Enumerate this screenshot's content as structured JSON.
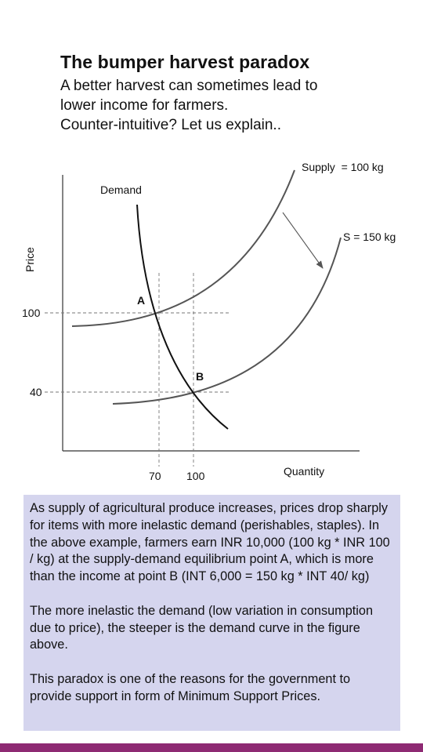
{
  "header": {
    "title": "The bumper harvest paradox",
    "subtitle_lines": [
      "A better harvest can sometimes lead to",
      "lower income for farmers.",
      "Counter-intuitive? Let us explain.."
    ]
  },
  "diagram": {
    "y_axis_label": "Price",
    "x_axis_label": "Quantity",
    "demand_label": "Demand",
    "supply1_label": "Supply  = 100 kg",
    "supply2_label": "S = 150 kg",
    "point_a_label": "A",
    "point_b_label": "B",
    "y_ticks": [
      "100",
      "40"
    ],
    "x_ticks": [
      "70",
      "100"
    ],
    "colors": {
      "demand": "#111111",
      "supply": "#555555",
      "guides": "#777777"
    }
  },
  "explanation": {
    "paragraph1": "As supply of agricultural produce increases, prices drop sharply for items with more inelastic demand (perishables, staples). In the above example, farmers earn INR 10,000 (100 kg * INR 100 / kg) at the supply-demand equilibrium point A, which is more than the income at point B (INT 6,000 = 150 kg * INT 40/ kg)",
    "paragraph2": "The more inelastic the demand (low variation in consumption due to price), the steeper is the demand curve in the figure above.",
    "paragraph3": "This paradox is one of the reasons for the government to provide support in form of Minimum Support Prices."
  },
  "theme": {
    "note_background": "#d5d5ee",
    "bottom_bar": "#8e2a73"
  }
}
